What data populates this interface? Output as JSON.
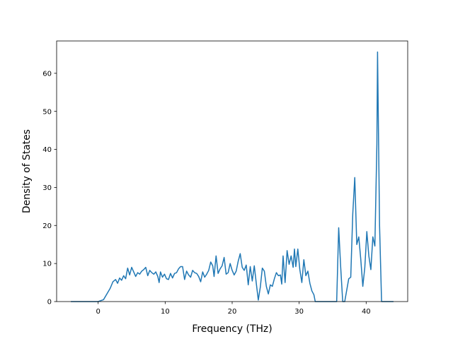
{
  "chart_data": {
    "type": "line",
    "title": "",
    "xlabel": "Frequency (THz)",
    "ylabel": "Density of States",
    "xlim": [
      -6.2,
      46.2
    ],
    "ylim": [
      0,
      68.5
    ],
    "x_ticks": [
      0,
      10,
      20,
      30,
      40
    ],
    "y_ticks": [
      0,
      10,
      20,
      30,
      40,
      50,
      60
    ],
    "grid": false,
    "legend": "none",
    "series": [
      {
        "color": "#1f77b4",
        "points": [
          [
            -4.0,
            0
          ],
          [
            0.0,
            0
          ],
          [
            0.8,
            0.5
          ],
          [
            1.3,
            2.0
          ],
          [
            1.8,
            3.5
          ],
          [
            2.2,
            5.2
          ],
          [
            2.6,
            5.8
          ],
          [
            2.9,
            4.8
          ],
          [
            3.2,
            6.2
          ],
          [
            3.5,
            5.6
          ],
          [
            3.8,
            6.8
          ],
          [
            4.1,
            6.0
          ],
          [
            4.4,
            8.8
          ],
          [
            4.7,
            7.0
          ],
          [
            5.0,
            9.0
          ],
          [
            5.3,
            7.8
          ],
          [
            5.6,
            6.6
          ],
          [
            5.9,
            7.6
          ],
          [
            6.2,
            7.2
          ],
          [
            6.5,
            8.0
          ],
          [
            6.8,
            8.4
          ],
          [
            7.1,
            9.0
          ],
          [
            7.4,
            6.8
          ],
          [
            7.7,
            8.2
          ],
          [
            8.0,
            7.6
          ],
          [
            8.3,
            7.2
          ],
          [
            8.6,
            7.8
          ],
          [
            8.9,
            6.6
          ],
          [
            9.1,
            5.0
          ],
          [
            9.3,
            7.8
          ],
          [
            9.6,
            6.4
          ],
          [
            9.9,
            7.2
          ],
          [
            10.2,
            6.0
          ],
          [
            10.5,
            5.8
          ],
          [
            10.8,
            7.4
          ],
          [
            11.1,
            6.2
          ],
          [
            11.4,
            7.4
          ],
          [
            11.7,
            7.6
          ],
          [
            12.0,
            8.6
          ],
          [
            12.3,
            9.2
          ],
          [
            12.6,
            9.2
          ],
          [
            12.9,
            5.8
          ],
          [
            13.2,
            8.0
          ],
          [
            13.5,
            7.0
          ],
          [
            13.8,
            6.4
          ],
          [
            14.1,
            8.2
          ],
          [
            14.4,
            7.6
          ],
          [
            14.7,
            7.4
          ],
          [
            15.0,
            6.6
          ],
          [
            15.3,
            5.2
          ],
          [
            15.6,
            7.8
          ],
          [
            15.9,
            6.4
          ],
          [
            16.2,
            7.2
          ],
          [
            16.5,
            8.2
          ],
          [
            16.8,
            10.4
          ],
          [
            17.1,
            9.4
          ],
          [
            17.3,
            6.6
          ],
          [
            17.6,
            12.0
          ],
          [
            17.9,
            7.4
          ],
          [
            18.2,
            8.6
          ],
          [
            18.5,
            9.4
          ],
          [
            18.8,
            11.6
          ],
          [
            19.1,
            7.2
          ],
          [
            19.4,
            7.6
          ],
          [
            19.7,
            10.0
          ],
          [
            20.0,
            8.2
          ],
          [
            20.3,
            7.0
          ],
          [
            20.6,
            8.0
          ],
          [
            20.9,
            10.6
          ],
          [
            21.2,
            12.6
          ],
          [
            21.5,
            9.0
          ],
          [
            21.8,
            8.2
          ],
          [
            22.1,
            9.6
          ],
          [
            22.4,
            4.4
          ],
          [
            22.7,
            9.2
          ],
          [
            23.0,
            5.4
          ],
          [
            23.3,
            9.4
          ],
          [
            23.6,
            4.8
          ],
          [
            23.9,
            0.4
          ],
          [
            24.2,
            3.8
          ],
          [
            24.5,
            8.8
          ],
          [
            24.8,
            8.0
          ],
          [
            25.1,
            4.0
          ],
          [
            25.4,
            2.0
          ],
          [
            25.7,
            4.4
          ],
          [
            26.0,
            4.0
          ],
          [
            26.3,
            6.0
          ],
          [
            26.6,
            7.6
          ],
          [
            26.9,
            6.8
          ],
          [
            27.2,
            7.0
          ],
          [
            27.4,
            4.6
          ],
          [
            27.6,
            12.0
          ],
          [
            27.9,
            5.0
          ],
          [
            28.2,
            13.4
          ],
          [
            28.5,
            9.8
          ],
          [
            28.8,
            12.0
          ],
          [
            29.1,
            9.0
          ],
          [
            29.3,
            13.8
          ],
          [
            29.5,
            9.2
          ],
          [
            29.8,
            13.8
          ],
          [
            30.1,
            8.4
          ],
          [
            30.4,
            5.0
          ],
          [
            30.7,
            11.0
          ],
          [
            31.0,
            6.8
          ],
          [
            31.3,
            8.0
          ],
          [
            31.6,
            4.8
          ],
          [
            31.9,
            2.8
          ],
          [
            32.2,
            1.8
          ],
          [
            32.4,
            0
          ],
          [
            35.6,
            0
          ],
          [
            35.9,
            19.4
          ],
          [
            36.2,
            9.0
          ],
          [
            36.5,
            0
          ],
          [
            36.8,
            0
          ],
          [
            37.1,
            3.0
          ],
          [
            37.4,
            6.0
          ],
          [
            37.7,
            6.4
          ],
          [
            38.0,
            23.0
          ],
          [
            38.3,
            32.6
          ],
          [
            38.6,
            15.0
          ],
          [
            38.9,
            17.0
          ],
          [
            39.2,
            11.0
          ],
          [
            39.5,
            4.0
          ],
          [
            39.8,
            9.0
          ],
          [
            40.1,
            18.4
          ],
          [
            40.4,
            12.0
          ],
          [
            40.7,
            8.4
          ],
          [
            41.0,
            17.0
          ],
          [
            41.3,
            14.6
          ],
          [
            41.6,
            41.4
          ],
          [
            41.7,
            65.6
          ],
          [
            42.0,
            20.0
          ],
          [
            42.3,
            0
          ],
          [
            44.0,
            0
          ]
        ]
      }
    ]
  }
}
